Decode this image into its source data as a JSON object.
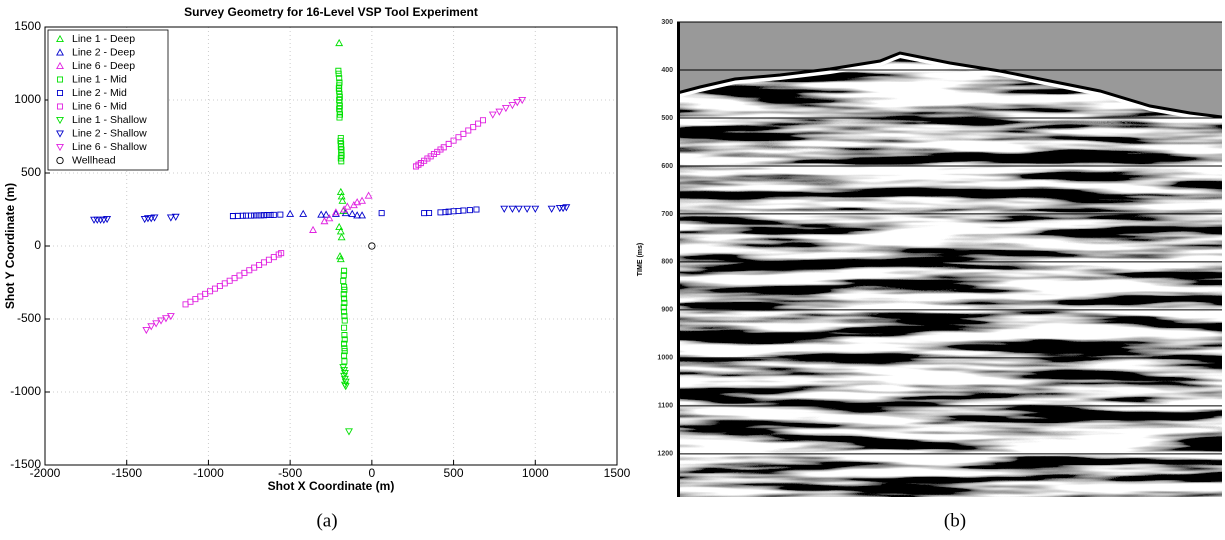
{
  "chart_data": [
    {
      "type": "scatter",
      "title": "Survey Geometry for 16-Level VSP Tool Experiment",
      "x_label": "Shot X Coordinate (m)",
      "y_label": "Shot Y Coordinate (m)",
      "caption": "(a)",
      "xlim": [
        -2000,
        1500
      ],
      "ylim": [
        -1500,
        1500
      ],
      "xticks": [
        -2000,
        -1500,
        -1000,
        -500,
        0,
        500,
        1000,
        1500
      ],
      "yticks": [
        -1500,
        -1000,
        -500,
        0,
        500,
        1000,
        1500
      ],
      "legend": "top-left",
      "series": [
        {
          "name": "Line 1 - Deep",
          "color": "#00e000",
          "marker": "triangle-up",
          "x": [
            -200,
            -190,
            -185,
            -180,
            -175,
            -200,
            -190,
            -185,
            -195,
            -190
          ],
          "y": [
            1390,
            370,
            340,
            310,
            240,
            130,
            100,
            60,
            -70,
            -90
          ]
        },
        {
          "name": "Line 2 - Deep",
          "color": "#0000cc",
          "marker": "triangle-up",
          "x": [
            -500,
            -420,
            -310,
            -280,
            -220,
            -160,
            -120,
            -90,
            -60
          ],
          "y": [
            220,
            220,
            215,
            215,
            220,
            225,
            220,
            210,
            210
          ]
        },
        {
          "name": "Line 6 - Deep",
          "color": "#e020e0",
          "marker": "triangle-up",
          "x": [
            -360,
            -290,
            -260,
            -220,
            -170,
            -150,
            -110,
            -90,
            -60,
            -20
          ],
          "y": [
            110,
            170,
            190,
            230,
            250,
            270,
            280,
            300,
            310,
            345
          ]
        },
        {
          "name": "Line 1 - Mid",
          "color": "#00e000",
          "marker": "square",
          "x": [
            -205,
            -203,
            -200,
            -198,
            -200,
            -202,
            -200,
            -198,
            -196,
            -200,
            -198,
            -196,
            -200,
            -197,
            -195,
            -198,
            -190,
            -192,
            -188,
            -190,
            -186,
            -188,
            -185,
            -190,
            -187,
            -170,
            -172,
            -175,
            -170,
            -168,
            -172,
            -170,
            -168,
            -172,
            -170,
            -168,
            -166,
            -170,
            -168,
            -166,
            -170,
            -168,
            -166,
            -170,
            -168
          ],
          "y": [
            1200,
            1180,
            1150,
            1120,
            1100,
            1080,
            1060,
            1040,
            1020,
            1000,
            980,
            960,
            940,
            920,
            900,
            880,
            740,
            720,
            700,
            680,
            660,
            640,
            620,
            600,
            580,
            -170,
            -200,
            -240,
            -280,
            -300,
            -330,
            -360,
            -390,
            -420,
            -450,
            -480,
            -510,
            -560,
            -610,
            -640,
            -670,
            -700,
            -720,
            -750,
            -790
          ]
        },
        {
          "name": "Line 2 - Mid",
          "color": "#0000cc",
          "marker": "square",
          "x": [
            -850,
            -820,
            -790,
            -770,
            -740,
            -720,
            -700,
            -680,
            -660,
            -640,
            -620,
            -600,
            -560,
            60,
            320,
            350,
            420,
            450,
            470,
            500,
            530,
            560,
            600,
            640
          ],
          "y": [
            205,
            206,
            207,
            208,
            208,
            209,
            210,
            210,
            211,
            212,
            212,
            213,
            215,
            225,
            225,
            226,
            230,
            232,
            235,
            238,
            240,
            243,
            246,
            250
          ]
        },
        {
          "name": "Line 6 - Mid",
          "color": "#e020e0",
          "marker": "square",
          "x": [
            -1140,
            -1110,
            -1080,
            -1050,
            -1020,
            -990,
            -960,
            -930,
            -900,
            -870,
            -840,
            -810,
            -780,
            -750,
            -720,
            -690,
            -660,
            -630,
            -600,
            -570,
            -555,
            270,
            285,
            300,
            320,
            340,
            360,
            380,
            400,
            420,
            440,
            470,
            500,
            530,
            560,
            590,
            620,
            650,
            680
          ],
          "y": [
            -400,
            -382,
            -364,
            -346,
            -328,
            -310,
            -292,
            -274,
            -256,
            -238,
            -220,
            -202,
            -184,
            -166,
            -148,
            -130,
            -112,
            -94,
            -76,
            -58,
            -49,
            545,
            557,
            568,
            584,
            599,
            614,
            630,
            645,
            661,
            676,
            699,
            722,
            745,
            768,
            791,
            814,
            838,
            861
          ]
        },
        {
          "name": "Line 1 - Shallow",
          "color": "#00e000",
          "marker": "triangle-down",
          "x": [
            -175,
            -170,
            -165,
            -170,
            -165,
            -160,
            -165,
            -160,
            -140
          ],
          "y": [
            -830,
            -850,
            -870,
            -890,
            -910,
            -930,
            -950,
            -960,
            -1270
          ]
        },
        {
          "name": "Line 2 - Shallow",
          "color": "#0000cc",
          "marker": "triangle-down",
          "x": [
            -1700,
            -1680,
            -1660,
            -1640,
            -1620,
            -1390,
            -1370,
            -1350,
            -1330,
            -1230,
            -1200,
            810,
            860,
            900,
            950,
            1000,
            1100,
            1150,
            1170,
            1190
          ],
          "y": [
            180,
            180,
            180,
            180,
            185,
            185,
            190,
            190,
            195,
            195,
            200,
            255,
            255,
            255,
            255,
            255,
            255,
            260,
            260,
            265
          ]
        },
        {
          "name": "Line 6 - Shallow",
          "color": "#e020e0",
          "marker": "triangle-down",
          "x": [
            -1380,
            -1350,
            -1320,
            -1290,
            -1260,
            -1230,
            740,
            780,
            820,
            860,
            890,
            920
          ],
          "y": [
            -575,
            -550,
            -530,
            -510,
            -495,
            -480,
            900,
            920,
            945,
            965,
            985,
            1000
          ]
        },
        {
          "name": "Wellhead",
          "color": "#000000",
          "marker": "circle",
          "x": [
            0
          ],
          "y": [
            0
          ]
        }
      ]
    },
    {
      "type": "image",
      "y_label": "TIME (ms)",
      "caption": "(b)",
      "ylim": [
        300,
        1290
      ],
      "yticks": [
        300,
        400,
        500,
        600,
        700,
        800,
        900,
        1000,
        1100,
        1200
      ],
      "grid": true
    }
  ]
}
